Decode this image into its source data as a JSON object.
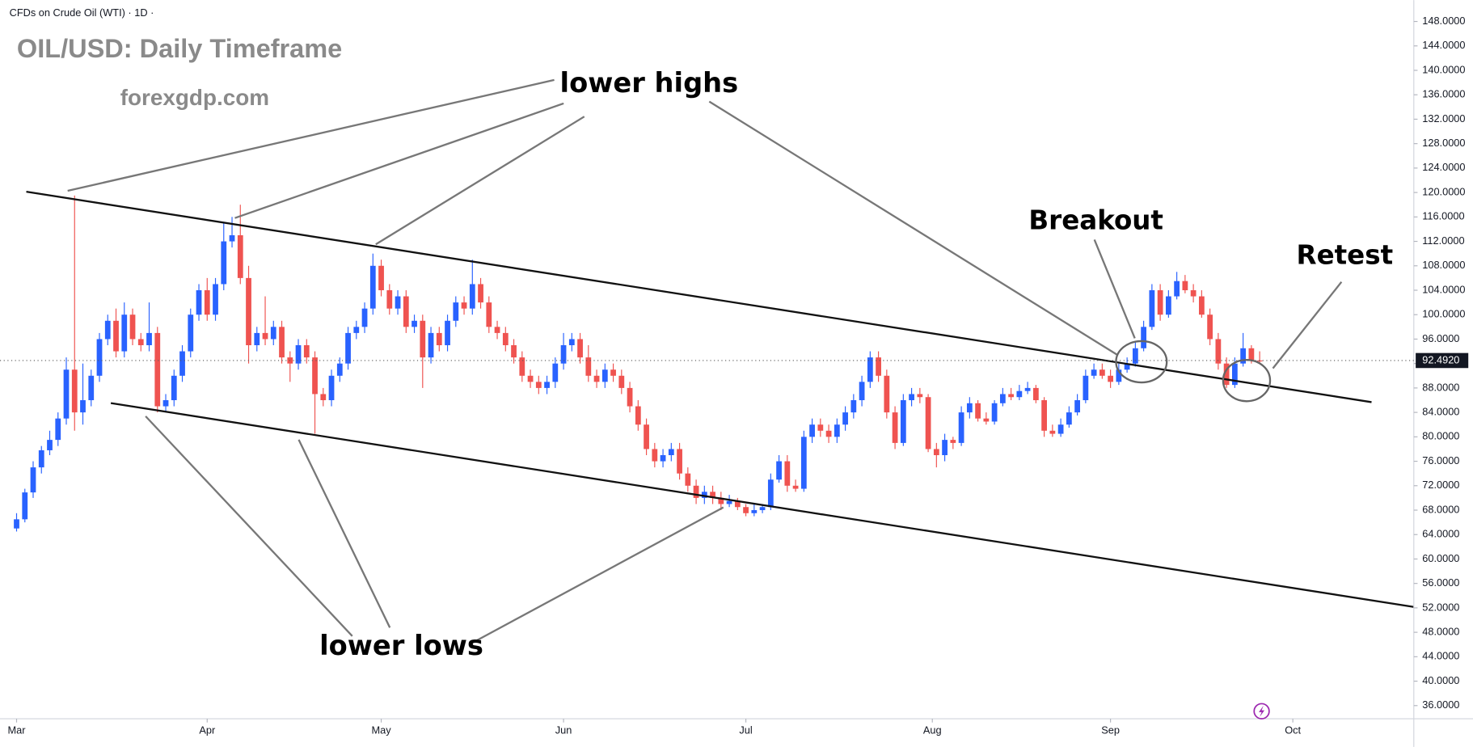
{
  "chart_data": {
    "type": "candlestick",
    "header": "CFDs on Crude Oil (WTI) · 1D ·",
    "title": "OIL/USD: Daily Timeframe",
    "subtitle": "forexgdp.com",
    "annotations": {
      "lower_highs": "lower highs",
      "lower_lows": "lower lows",
      "breakout": "Breakout",
      "retest": "Retest"
    },
    "up_color": "#2962ff",
    "down_color": "#ef5350",
    "grid": false,
    "xlim": [
      -2,
      168.6
    ],
    "ylim": [
      33.85,
      151.5
    ],
    "xticks": [
      {
        "value": 0,
        "label": "Mar"
      },
      {
        "value": 23,
        "label": "Apr"
      },
      {
        "value": 44,
        "label": "May"
      },
      {
        "value": 66,
        "label": "Jun"
      },
      {
        "value": 88,
        "label": "Jul"
      },
      {
        "value": 110.5,
        "label": "Aug"
      },
      {
        "value": 132,
        "label": "Sep"
      },
      {
        "value": 154,
        "label": "Oct"
      }
    ],
    "yticks": [
      {
        "value": 36,
        "label": "36.0000"
      },
      {
        "value": 40,
        "label": "40.0000"
      },
      {
        "value": 44,
        "label": "44.0000"
      },
      {
        "value": 48,
        "label": "48.0000"
      },
      {
        "value": 52,
        "label": "52.0000"
      },
      {
        "value": 56,
        "label": "56.0000"
      },
      {
        "value": 60,
        "label": "60.0000"
      },
      {
        "value": 64,
        "label": "64.0000"
      },
      {
        "value": 68,
        "label": "68.0000"
      },
      {
        "value": 72,
        "label": "72.0000"
      },
      {
        "value": 76,
        "label": "76.0000"
      },
      {
        "value": 80,
        "label": "80.0000"
      },
      {
        "value": 84,
        "label": "84.0000"
      },
      {
        "value": 88,
        "label": "88.0000"
      },
      {
        "value": 92,
        "label": "92.0000"
      },
      {
        "value": 96,
        "label": "96.0000"
      },
      {
        "value": 100,
        "label": "100.0000"
      },
      {
        "value": 104,
        "label": "104.0000"
      },
      {
        "value": 108,
        "label": "108.0000"
      },
      {
        "value": 112,
        "label": "112.0000"
      },
      {
        "value": 116,
        "label": "116.0000"
      },
      {
        "value": 120,
        "label": "120.0000"
      },
      {
        "value": 124,
        "label": "124.0000"
      },
      {
        "value": 128,
        "label": "128.0000"
      },
      {
        "value": 132,
        "label": "132.0000"
      },
      {
        "value": 136,
        "label": "136.0000"
      },
      {
        "value": 140,
        "label": "140.0000"
      },
      {
        "value": 144,
        "label": "144.0000"
      },
      {
        "value": 148,
        "label": "148.0000"
      }
    ],
    "current_price": {
      "value": 92.492,
      "label": "92.4920"
    },
    "ohlc": [
      [
        65,
        67.5,
        64.5,
        66.5
      ],
      [
        66.5,
        71.5,
        66,
        70.9
      ],
      [
        70.9,
        76,
        70,
        75
      ],
      [
        75,
        78.5,
        74,
        77.8
      ],
      [
        77.8,
        81,
        77,
        79.5
      ],
      [
        79.5,
        84,
        78.5,
        83
      ],
      [
        83,
        93,
        82,
        91
      ],
      [
        91,
        119.5,
        81,
        84
      ],
      [
        84,
        92,
        82,
        86
      ],
      [
        86,
        91,
        85,
        90
      ],
      [
        90,
        97,
        89,
        96
      ],
      [
        96,
        100,
        95,
        99
      ],
      [
        99,
        101,
        93,
        94
      ],
      [
        94,
        102,
        93,
        100
      ],
      [
        100,
        101,
        95,
        96
      ],
      [
        96,
        97,
        94,
        95
      ],
      [
        95,
        102,
        94,
        97
      ],
      [
        97,
        98,
        84,
        85
      ],
      [
        85,
        87,
        84,
        86
      ],
      [
        86,
        91,
        85,
        90
      ],
      [
        90,
        95,
        89,
        94
      ],
      [
        94,
        101,
        93,
        100
      ],
      [
        100,
        105,
        99,
        104
      ],
      [
        104,
        106,
        99,
        100
      ],
      [
        100,
        106,
        99,
        105
      ],
      [
        105,
        115,
        104,
        112
      ],
      [
        112,
        116,
        111,
        113
      ],
      [
        113,
        118,
        105,
        106
      ],
      [
        106,
        108,
        92,
        95
      ],
      [
        95,
        98,
        94,
        97
      ],
      [
        97,
        103,
        95,
        96
      ],
      [
        96,
        99,
        95,
        98
      ],
      [
        98,
        99,
        92,
        93
      ],
      [
        93,
        94,
        89,
        92
      ],
      [
        92,
        96,
        91,
        95
      ],
      [
        95,
        96,
        92,
        93
      ],
      [
        93,
        94,
        80.5,
        87
      ],
      [
        87,
        88,
        85,
        86
      ],
      [
        86,
        91,
        85,
        90
      ],
      [
        90,
        93,
        89,
        92
      ],
      [
        92,
        98,
        91,
        97
      ],
      [
        97,
        99,
        96,
        98
      ],
      [
        98,
        102,
        97,
        101
      ],
      [
        101,
        110,
        100,
        108
      ],
      [
        108,
        109,
        103,
        104
      ],
      [
        104,
        105,
        100,
        101
      ],
      [
        101,
        104,
        100,
        103
      ],
      [
        103,
        104,
        97,
        98
      ],
      [
        98,
        100,
        97,
        99
      ],
      [
        99,
        100,
        88,
        93
      ],
      [
        93,
        98,
        92,
        97
      ],
      [
        97,
        98,
        94,
        95
      ],
      [
        95,
        100,
        94,
        99
      ],
      [
        99,
        103,
        98,
        102
      ],
      [
        102,
        103,
        100,
        101
      ],
      [
        101,
        109,
        100,
        105
      ],
      [
        105,
        106,
        101,
        102
      ],
      [
        102,
        103,
        97,
        98
      ],
      [
        98,
        99,
        96,
        97
      ],
      [
        97,
        98,
        94,
        95
      ],
      [
        95,
        96,
        92,
        93
      ],
      [
        93,
        94,
        89,
        90
      ],
      [
        90,
        91,
        88,
        89
      ],
      [
        89,
        90,
        87,
        88
      ],
      [
        88,
        90,
        87,
        89
      ],
      [
        89,
        93,
        88,
        92
      ],
      [
        92,
        97,
        91,
        95
      ],
      [
        95,
        97,
        94,
        96
      ],
      [
        96,
        97,
        92,
        93
      ],
      [
        93,
        95,
        89,
        90
      ],
      [
        90,
        91,
        88,
        89
      ],
      [
        89,
        92,
        88,
        91
      ],
      [
        91,
        92,
        89,
        90
      ],
      [
        90,
        91,
        87,
        88
      ],
      [
        88,
        89,
        84,
        85
      ],
      [
        85,
        86,
        81,
        82
      ],
      [
        82,
        83,
        77,
        78
      ],
      [
        78,
        79,
        75,
        76
      ],
      [
        76,
        78,
        75,
        77
      ],
      [
        77,
        79,
        76,
        78
      ],
      [
        78,
        79,
        73,
        74
      ],
      [
        74,
        75,
        71,
        72
      ],
      [
        72,
        73,
        69,
        70
      ],
      [
        70,
        72,
        69,
        71
      ],
      [
        71,
        72,
        69,
        70
      ],
      [
        70,
        71,
        68,
        69
      ],
      [
        69,
        70.5,
        68.5,
        69.5
      ],
      [
        69.5,
        70,
        68,
        68.5
      ],
      [
        68.5,
        69,
        67,
        67.5
      ],
      [
        67.5,
        69,
        67,
        68
      ],
      [
        68,
        69,
        67.5,
        68.5
      ],
      [
        68.5,
        74,
        68,
        73
      ],
      [
        73,
        77,
        72.5,
        76
      ],
      [
        76,
        77,
        71,
        72
      ],
      [
        72,
        73,
        71,
        71.5
      ],
      [
        71.5,
        81,
        71,
        80
      ],
      [
        80,
        83,
        79,
        82
      ],
      [
        82,
        83,
        80,
        81
      ],
      [
        81,
        82,
        79,
        80
      ],
      [
        80,
        83,
        79,
        82
      ],
      [
        82,
        85,
        81,
        84
      ],
      [
        84,
        87,
        83,
        86
      ],
      [
        86,
        90,
        85,
        89
      ],
      [
        89,
        94,
        88,
        93
      ],
      [
        93,
        94,
        89,
        90
      ],
      [
        90,
        91,
        83,
        84
      ],
      [
        84,
        85,
        78,
        79
      ],
      [
        79,
        87,
        78.5,
        86
      ],
      [
        86,
        88,
        85,
        87
      ],
      [
        87,
        88,
        85.5,
        86.5
      ],
      [
        86.5,
        87,
        77.5,
        78
      ],
      [
        78,
        79,
        75,
        77
      ],
      [
        77,
        80.5,
        76,
        79.5
      ],
      [
        79.5,
        80,
        78,
        79
      ],
      [
        79,
        85,
        78.5,
        84
      ],
      [
        84,
        86.5,
        83,
        85.5
      ],
      [
        85.5,
        86,
        82.5,
        83
      ],
      [
        83,
        84,
        82,
        82.5
      ],
      [
        82.5,
        86,
        82,
        85.5
      ],
      [
        85.5,
        88,
        85,
        87
      ],
      [
        87,
        88,
        86,
        86.5
      ],
      [
        86.5,
        88.5,
        86,
        87.5
      ],
      [
        87.5,
        89,
        87,
        88
      ],
      [
        88,
        88.5,
        85.5,
        86
      ],
      [
        86,
        86.5,
        80,
        81
      ],
      [
        81,
        82,
        80,
        80.5
      ],
      [
        80.5,
        83,
        80,
        82
      ],
      [
        82,
        85,
        81.5,
        84
      ],
      [
        84,
        87,
        83.5,
        86
      ],
      [
        86,
        91,
        85.5,
        90
      ],
      [
        90,
        92,
        89.5,
        91
      ],
      [
        91,
        92,
        89.5,
        90
      ],
      [
        90,
        91,
        88,
        89
      ],
      [
        89,
        92,
        88.5,
        91
      ],
      [
        91,
        93,
        90.5,
        92
      ],
      [
        92,
        95.5,
        91.5,
        94.5
      ],
      [
        94.5,
        99,
        94,
        98
      ],
      [
        98,
        105,
        97.5,
        104
      ],
      [
        104,
        105,
        99,
        100
      ],
      [
        100,
        104,
        99.5,
        103
      ],
      [
        103,
        107,
        102.5,
        105.5
      ],
      [
        105.5,
        106.5,
        103.5,
        104
      ],
      [
        104,
        105,
        102,
        103
      ],
      [
        103,
        104,
        99.5,
        100
      ],
      [
        100,
        101,
        95,
        96
      ],
      [
        96,
        97,
        91,
        92
      ],
      [
        92,
        93,
        88,
        88.5
      ],
      [
        88.5,
        93,
        88,
        92
      ],
      [
        92,
        97,
        91.5,
        94.5
      ],
      [
        94.5,
        95,
        92,
        92.5
      ],
      [
        92.5,
        94,
        92,
        92.49
      ]
    ]
  }
}
